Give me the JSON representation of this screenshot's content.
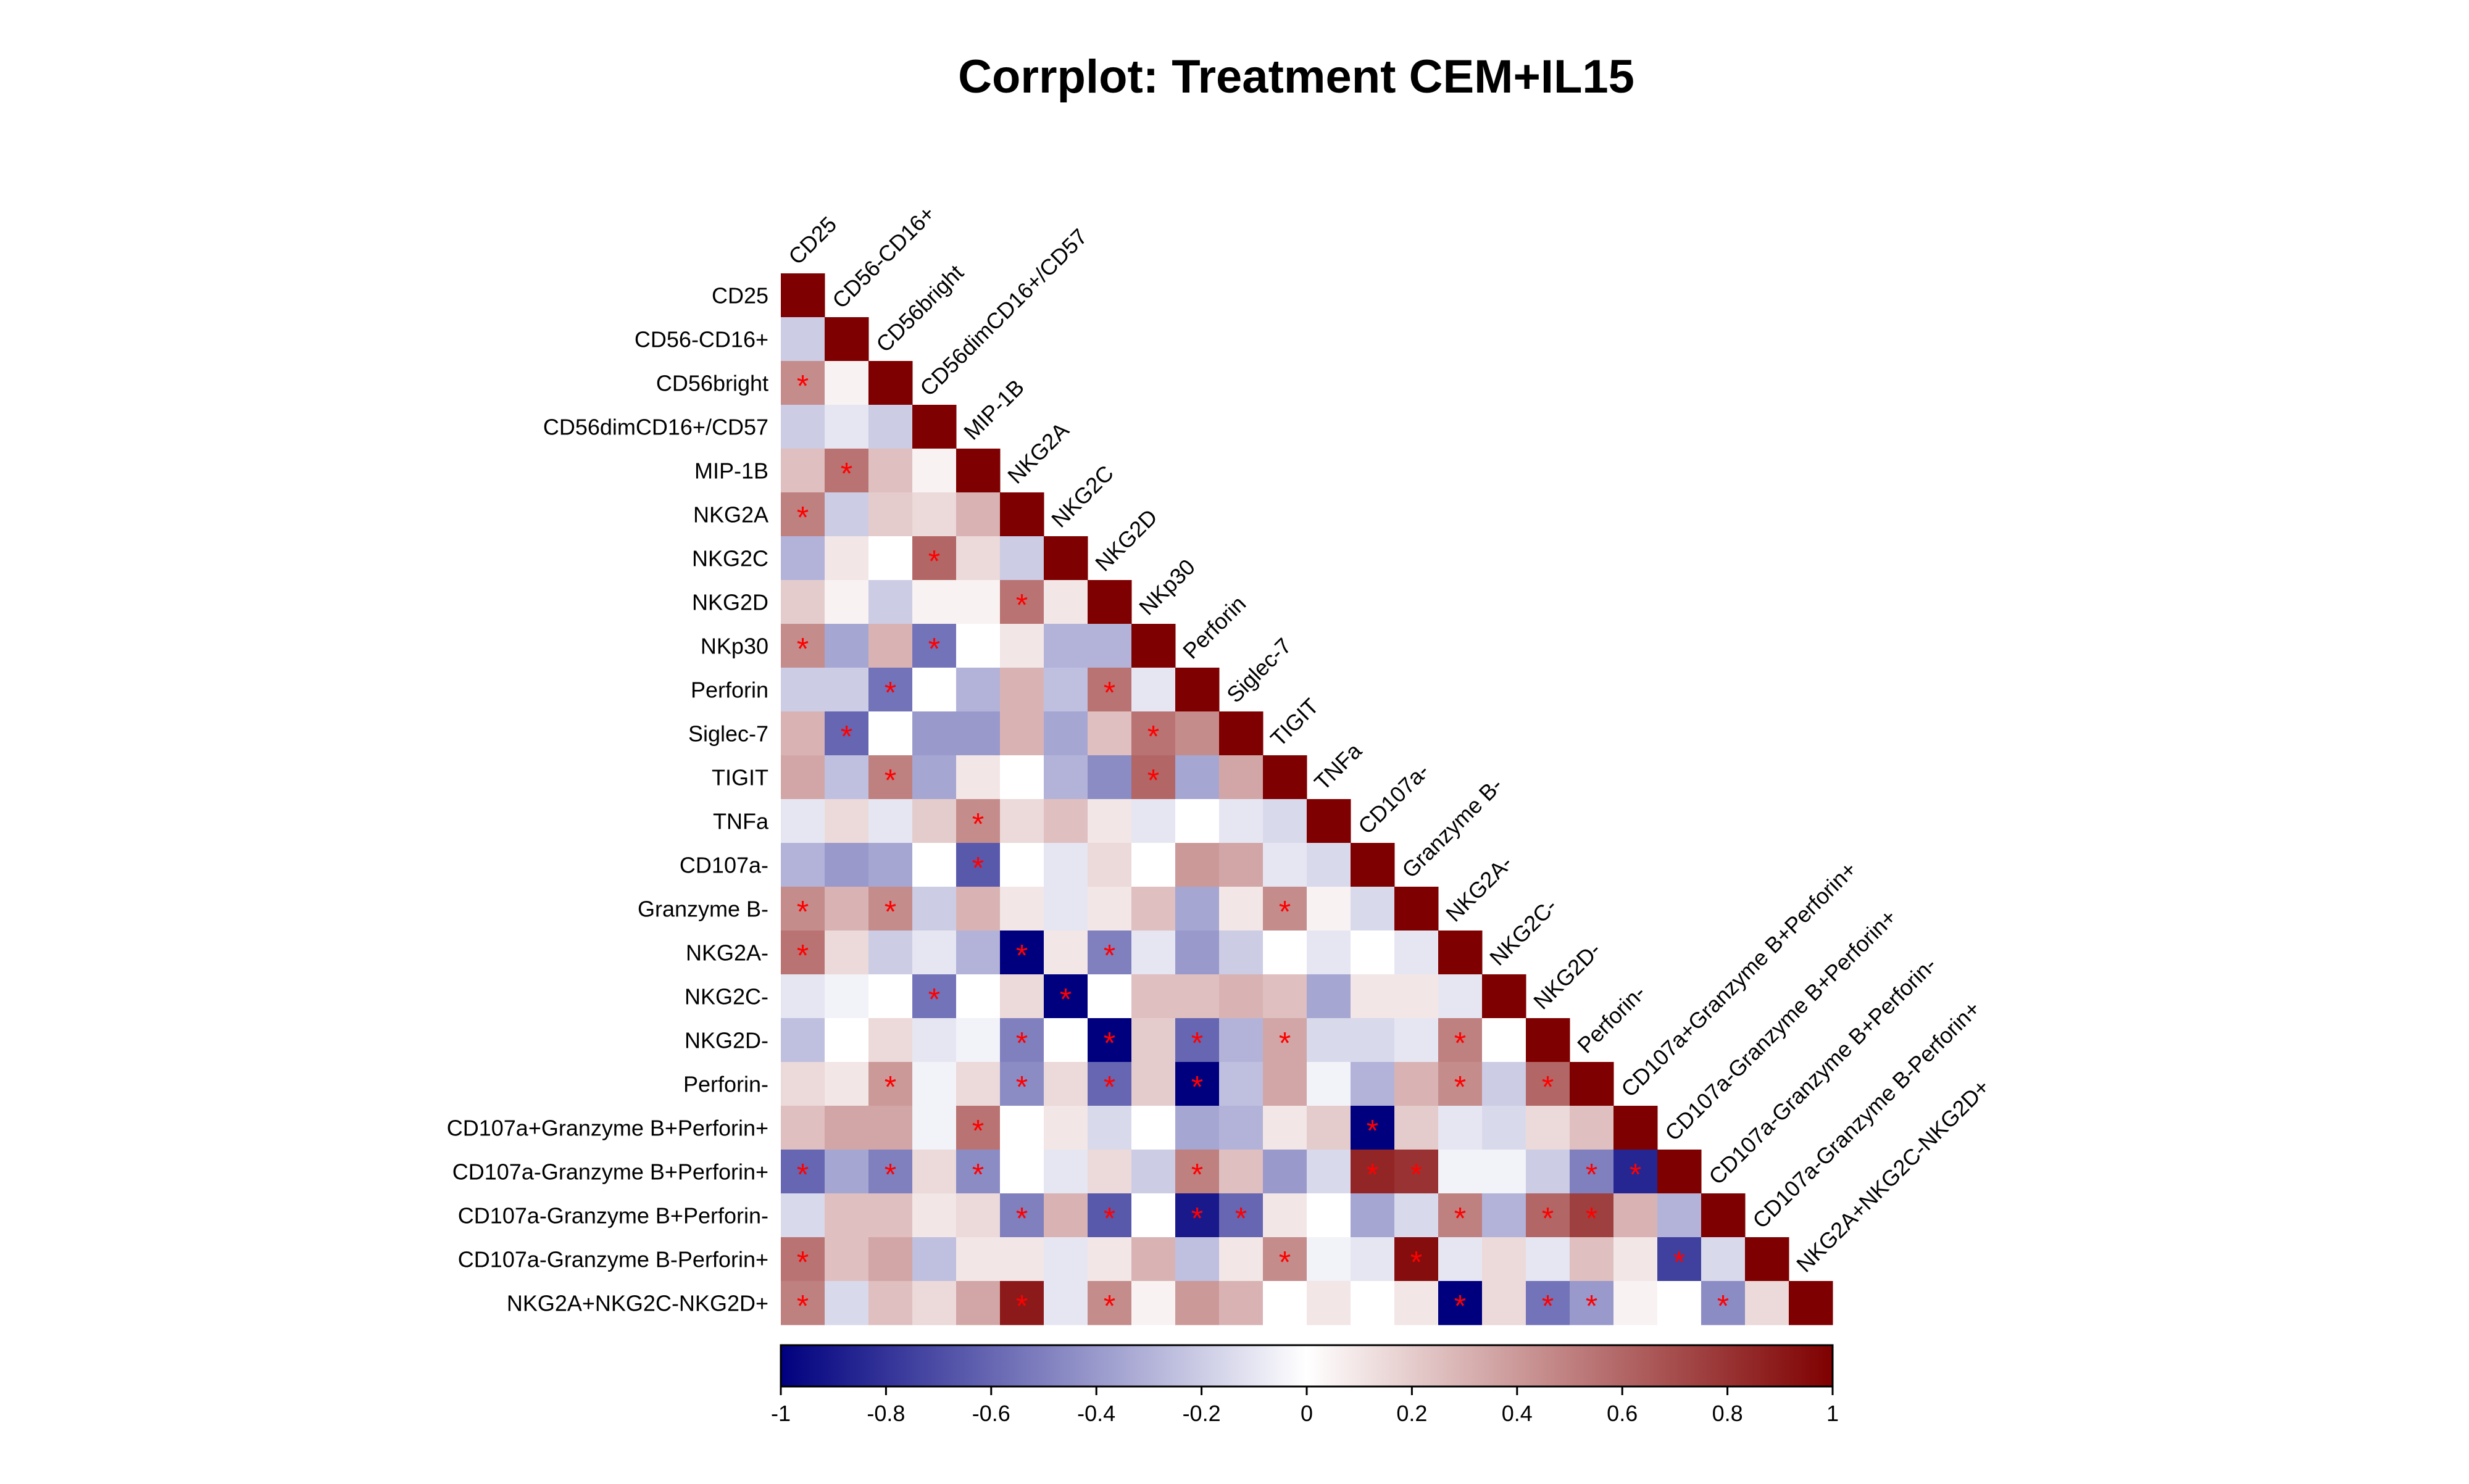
{
  "chart_data": {
    "type": "heatmap",
    "title": "Corrplot: Treatment CEM+IL15",
    "variables": [
      "CD25",
      "CD56-CD16+",
      "CD56bright",
      "CD56dimCD16+/CD57",
      "MIP-1B",
      "NKG2A",
      "NKG2C",
      "NKG2D",
      "NKp30",
      "Perforin",
      "Siglec-7",
      "TIGIT",
      "TNFa",
      "CD107a-",
      "Granzyme B-",
      "NKG2A-",
      "NKG2C-",
      "NKG2D-",
      "Perforin-",
      "CD107a+Granzyme B+Perforin+",
      "CD107a-Granzyme B+Perforin+",
      "CD107a-Granzyme B+Perforin-",
      "CD107a-Granzyme B-Perforin+",
      "NKG2A+NKG2C-NKG2D+"
    ],
    "lower_triangle_values": [
      [
        1
      ],
      [
        -0.2,
        1
      ],
      [
        0.45,
        0.05,
        1
      ],
      [
        -0.2,
        -0.1,
        -0.2,
        1
      ],
      [
        0.25,
        0.55,
        0.25,
        0.05,
        1
      ],
      [
        0.5,
        -0.2,
        0.2,
        0.15,
        0.3,
        1
      ],
      [
        -0.3,
        0.1,
        0.0,
        0.6,
        0.15,
        -0.2,
        1
      ],
      [
        0.2,
        0.05,
        -0.2,
        0.05,
        0.05,
        0.55,
        0.1,
        1
      ],
      [
        0.45,
        -0.35,
        0.3,
        -0.55,
        0.0,
        0.1,
        -0.3,
        -0.3,
        1
      ],
      [
        -0.2,
        -0.2,
        -0.55,
        0.0,
        -0.3,
        0.3,
        -0.25,
        0.55,
        -0.1,
        1
      ],
      [
        0.3,
        -0.6,
        0.0,
        -0.4,
        -0.4,
        0.3,
        -0.35,
        0.25,
        0.55,
        0.45,
        1
      ],
      [
        0.35,
        -0.25,
        0.5,
        -0.35,
        0.1,
        0.0,
        -0.3,
        -0.45,
        0.6,
        -0.35,
        0.35,
        1
      ],
      [
        -0.1,
        0.15,
        -0.1,
        0.2,
        0.45,
        0.15,
        0.25,
        0.1,
        -0.1,
        0.0,
        -0.1,
        -0.15,
        1
      ],
      [
        -0.3,
        -0.4,
        -0.35,
        0.0,
        -0.65,
        0.0,
        -0.1,
        0.15,
        0.0,
        0.4,
        0.35,
        -0.1,
        -0.15,
        1
      ],
      [
        0.45,
        0.3,
        0.45,
        -0.2,
        0.3,
        0.1,
        -0.1,
        0.1,
        0.25,
        -0.35,
        0.1,
        0.45,
        0.05,
        -0.15,
        1
      ],
      [
        0.55,
        0.15,
        -0.2,
        -0.1,
        -0.3,
        -1.0,
        0.1,
        -0.5,
        -0.1,
        -0.4,
        -0.2,
        0.0,
        -0.1,
        0.0,
        -0.1,
        1
      ],
      [
        -0.1,
        -0.05,
        0.0,
        -0.55,
        0.0,
        0.15,
        -1.0,
        0.0,
        0.25,
        0.25,
        0.3,
        0.25,
        -0.35,
        0.1,
        0.1,
        -0.1,
        1
      ],
      [
        -0.25,
        0.0,
        0.15,
        -0.1,
        -0.05,
        -0.5,
        0.0,
        -1.0,
        0.2,
        -0.6,
        -0.3,
        0.35,
        -0.15,
        -0.15,
        -0.1,
        0.5,
        0.0,
        1
      ],
      [
        0.15,
        0.1,
        0.4,
        -0.05,
        0.15,
        -0.45,
        0.15,
        -0.6,
        0.2,
        -1.0,
        -0.25,
        0.35,
        -0.05,
        -0.3,
        0.3,
        0.45,
        -0.2,
        0.6,
        1
      ],
      [
        0.25,
        0.35,
        0.35,
        -0.05,
        0.55,
        0.0,
        0.1,
        -0.15,
        0.0,
        -0.35,
        -0.3,
        0.1,
        0.2,
        -1.0,
        0.2,
        -0.1,
        -0.15,
        0.15,
        0.25,
        1
      ],
      [
        -0.6,
        -0.35,
        -0.5,
        0.15,
        -0.45,
        0.0,
        -0.1,
        0.15,
        -0.2,
        0.5,
        0.25,
        -0.4,
        -0.15,
        0.85,
        0.8,
        -0.05,
        -0.05,
        -0.2,
        -0.5,
        -0.85,
        1
      ],
      [
        -0.15,
        0.25,
        0.25,
        0.1,
        0.15,
        -0.5,
        0.3,
        -0.65,
        0.0,
        -0.9,
        -0.6,
        0.1,
        0.0,
        -0.35,
        -0.15,
        0.5,
        -0.3,
        0.6,
        0.75,
        0.3,
        -0.3,
        1
      ],
      [
        0.55,
        0.25,
        0.35,
        -0.25,
        0.1,
        0.1,
        -0.1,
        0.1,
        0.3,
        -0.25,
        0.1,
        0.45,
        -0.05,
        -0.1,
        0.95,
        -0.1,
        0.15,
        -0.1,
        0.25,
        0.1,
        -0.75,
        -0.15,
        1
      ],
      [
        0.5,
        -0.15,
        0.25,
        0.15,
        0.35,
        0.9,
        -0.1,
        0.45,
        0.05,
        0.4,
        0.3,
        0.0,
        0.1,
        0.0,
        0.1,
        -1.0,
        0.15,
        -0.55,
        -0.4,
        0.05,
        0.0,
        -0.45,
        0.15,
        1
      ]
    ],
    "significant_cells": [
      [
        2,
        0
      ],
      [
        4,
        1
      ],
      [
        5,
        0
      ],
      [
        6,
        3
      ],
      [
        7,
        5
      ],
      [
        8,
        0
      ],
      [
        8,
        3
      ],
      [
        9,
        2
      ],
      [
        9,
        7
      ],
      [
        10,
        1
      ],
      [
        10,
        8
      ],
      [
        11,
        2
      ],
      [
        11,
        8
      ],
      [
        12,
        4
      ],
      [
        13,
        4
      ],
      [
        14,
        0
      ],
      [
        14,
        2
      ],
      [
        14,
        11
      ],
      [
        15,
        0
      ],
      [
        15,
        5
      ],
      [
        15,
        7
      ],
      [
        16,
        3
      ],
      [
        16,
        6
      ],
      [
        17,
        5
      ],
      [
        17,
        7
      ],
      [
        17,
        9
      ],
      [
        17,
        11
      ],
      [
        17,
        15
      ],
      [
        18,
        2
      ],
      [
        18,
        5
      ],
      [
        18,
        7
      ],
      [
        18,
        9
      ],
      [
        18,
        15
      ],
      [
        18,
        17
      ],
      [
        19,
        4
      ],
      [
        19,
        13
      ],
      [
        20,
        0
      ],
      [
        20,
        2
      ],
      [
        20,
        4
      ],
      [
        20,
        9
      ],
      [
        20,
        13
      ],
      [
        20,
        14
      ],
      [
        20,
        18
      ],
      [
        20,
        19
      ],
      [
        21,
        5
      ],
      [
        21,
        7
      ],
      [
        21,
        9
      ],
      [
        21,
        10
      ],
      [
        21,
        15
      ],
      [
        21,
        17
      ],
      [
        21,
        18
      ],
      [
        22,
        0
      ],
      [
        22,
        11
      ],
      [
        22,
        14
      ],
      [
        22,
        20
      ],
      [
        23,
        0
      ],
      [
        23,
        5
      ],
      [
        23,
        7
      ],
      [
        23,
        15
      ],
      [
        23,
        17
      ],
      [
        23,
        18
      ],
      [
        23,
        21
      ]
    ],
    "significance_marker": "*",
    "colorbar": {
      "range": [
        -1,
        1
      ],
      "ticks": [
        "-1",
        "-0.8",
        "-0.6",
        "-0.4",
        "-0.2",
        "0",
        "0.2",
        "0.4",
        "0.6",
        "0.8",
        "1"
      ],
      "colors": [
        "#00007F",
        "#FFFFFF",
        "#7F0000"
      ]
    },
    "colors": {
      "marker": "#FF0000",
      "text": "#000000"
    }
  }
}
